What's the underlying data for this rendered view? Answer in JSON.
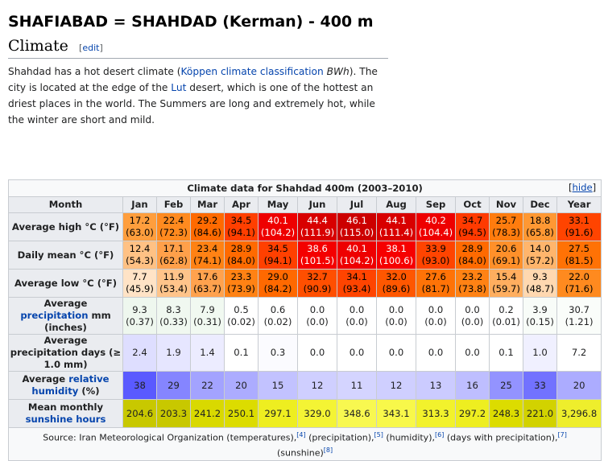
{
  "page_title": "SHAFIABAD = SHAHDAD (Kerman) - 400 m",
  "section": {
    "title": "Climate",
    "edit": "edit"
  },
  "paragraph": {
    "t1": "Shahdad has a hot desert climate (",
    "link1": "Köppen climate classification",
    "t2": " ",
    "bwh": "BWh",
    "t3": "). The city is located at the edge of the ",
    "link2": "Lut",
    "t4": " desert, which is one of the hottest an driest places in the world. The Summers are long and extremely hot, while the winter are short and mild."
  },
  "table": {
    "caption": "Climate data for Shahdad 400m (2003–2010)",
    "hide": "hide",
    "month_label": "Month",
    "months": [
      "Jan",
      "Feb",
      "Mar",
      "Apr",
      "May",
      "Jun",
      "Jul",
      "Aug",
      "Sep",
      "Oct",
      "Nov",
      "Dec",
      "Year"
    ],
    "rows": {
      "high": {
        "label": "Average high °C (°F)",
        "c": [
          "17.2",
          "22.4",
          "29.2",
          "34.5",
          "40.1",
          "44.4",
          "46.1",
          "44.1",
          "40.2",
          "34.7",
          "25.7",
          "18.8",
          "33.1"
        ],
        "f": [
          "(63.0)",
          "(72.3)",
          "(84.6)",
          "(94.1)",
          "(104.2)",
          "(111.9)",
          "(115.0)",
          "(111.4)",
          "(104.4)",
          "(94.5)",
          "(78.3)",
          "(65.8)",
          "(91.6)"
        ],
        "bg": [
          "#ff9e3d",
          "#ff8a1f",
          "#ff6a00",
          "#ff3f00",
          "#ee0000",
          "#d80000",
          "#cc0000",
          "#d80000",
          "#ee0000",
          "#ff3a00",
          "#ff7c0e",
          "#ff9833",
          "#ff4400"
        ],
        "fg": [
          "#000",
          "#000",
          "#000",
          "#000",
          "#fff",
          "#fff",
          "#fff",
          "#fff",
          "#fff",
          "#000",
          "#000",
          "#000",
          "#000"
        ]
      },
      "mean": {
        "label": "Daily mean °C (°F)",
        "c": [
          "12.4",
          "17.1",
          "23.4",
          "28.9",
          "34.5",
          "38.6",
          "40.1",
          "38.1",
          "33.9",
          "28.9",
          "20.6",
          "14.0",
          "27.5"
        ],
        "f": [
          "(54.3)",
          "(62.8)",
          "(74.1)",
          "(84.0)",
          "(94.1)",
          "(101.5)",
          "(104.2)",
          "(100.6)",
          "(93.0)",
          "(84.0)",
          "(69.1)",
          "(57.2)",
          "(81.5)"
        ],
        "bg": [
          "#ffc184",
          "#ffa04a",
          "#ff8214",
          "#ff6a00",
          "#ff4000",
          "#f40000",
          "#ee0000",
          "#f60000",
          "#ff4400",
          "#ff6a00",
          "#ff902a",
          "#ffb56c",
          "#ff7205"
        ],
        "fg": [
          "#000",
          "#000",
          "#000",
          "#000",
          "#000",
          "#fff",
          "#fff",
          "#fff",
          "#000",
          "#000",
          "#000",
          "#000",
          "#000"
        ]
      },
      "low": {
        "label": "Average low °C (°F)",
        "c": [
          "7.7",
          "11.9",
          "17.6",
          "23.3",
          "29.0",
          "32.7",
          "34.1",
          "32.0",
          "27.6",
          "23.2",
          "15.4",
          "9.3",
          "22.0"
        ],
        "f": [
          "(45.9)",
          "(53.4)",
          "(63.7)",
          "(73.9)",
          "(84.2)",
          "(90.9)",
          "(93.4)",
          "(89.6)",
          "(81.7)",
          "(73.8)",
          "(59.7)",
          "(48.7)",
          "(71.6)"
        ],
        "bg": [
          "#ffe3c6",
          "#ffc48a",
          "#ffa24e",
          "#ff8214",
          "#ff6900",
          "#ff4f00",
          "#ff4400",
          "#ff5700",
          "#ff7307",
          "#ff8214",
          "#ffae5f",
          "#ffd8b0",
          "#ff8a1f"
        ],
        "fg": [
          "#000",
          "#000",
          "#000",
          "#000",
          "#000",
          "#000",
          "#000",
          "#000",
          "#000",
          "#000",
          "#000",
          "#000",
          "#000"
        ]
      },
      "precip": {
        "label_a": "Average ",
        "label_link": "precipitation",
        "label_b": " mm (inches)",
        "c": [
          "9.3",
          "8.3",
          "7.9",
          "0.5",
          "0.6",
          "0.0",
          "0.0",
          "0.0",
          "0.0",
          "0.0",
          "0.2",
          "3.9",
          "30.7"
        ],
        "f": [
          "(0.37)",
          "(0.33)",
          "(0.31)",
          "(0.02)",
          "(0.02)",
          "(0.0)",
          "(0.0)",
          "(0.0)",
          "(0.0)",
          "(0.0)",
          "(0.01)",
          "(0.15)",
          "(1.21)"
        ],
        "bg": [
          "#eef7ee",
          "#f0f8f0",
          "#f1f9f1",
          "#ffffff",
          "#ffffff",
          "#ffffff",
          "#ffffff",
          "#ffffff",
          "#ffffff",
          "#ffffff",
          "#ffffff",
          "#f8fcf8",
          "#fafdfa"
        ]
      },
      "pdays": {
        "label": "Average precipitation days (≥ 1.0 mm)",
        "v": [
          "2.4",
          "1.9",
          "1.4",
          "0.1",
          "0.3",
          "0.0",
          "0.0",
          "0.0",
          "0.0",
          "0.0",
          "0.1",
          "1.0",
          "7.2"
        ],
        "bg": [
          "#dedeff",
          "#e6e6ff",
          "#ececff",
          "#ffffff",
          "#fbfbff",
          "#ffffff",
          "#ffffff",
          "#ffffff",
          "#ffffff",
          "#ffffff",
          "#ffffff",
          "#f0f0ff",
          "#ffffff"
        ]
      },
      "humid": {
        "label_a": "Average ",
        "label_link": "relative humidity",
        "label_b": " (%)",
        "v": [
          "38",
          "29",
          "22",
          "20",
          "15",
          "12",
          "11",
          "12",
          "13",
          "16",
          "25",
          "33",
          "20"
        ],
        "bg": [
          "#5a5aff",
          "#8585ff",
          "#a3a3ff",
          "#acacff",
          "#c2c2ff",
          "#cfcfff",
          "#d4d4ff",
          "#cfcfff",
          "#cbcbff",
          "#bebeff",
          "#9393ff",
          "#7272ff",
          "#acacff"
        ]
      },
      "sun": {
        "label_a": "Mean monthly ",
        "label_link": "sunshine hours",
        "v": [
          "204.6",
          "203.3",
          "241.2",
          "250.1",
          "297.1",
          "329.0",
          "348.6",
          "343.1",
          "313.3",
          "297.2",
          "248.3",
          "221.0",
          "3,296.8"
        ],
        "bg": [
          "#c8c800",
          "#c8c800",
          "#d9d900",
          "#dcdc00",
          "#eeee20",
          "#f4f434",
          "#f8f850",
          "#f8f84a",
          "#f2f22c",
          "#eeee20",
          "#dcdc00",
          "#d2d200",
          "#eeee2c"
        ]
      }
    },
    "source": {
      "s1": "Source: Iran Meteorological Organization (temperatures),",
      "r4": "[4]",
      "s2": " (precipitation),",
      "r5": "[5]",
      "s3": " (humidity),",
      "r6": "[6]",
      "s4": " (days with precipitation),",
      "r7": "[7]",
      "s5": "(sunshine)",
      "r8": "[8]"
    }
  }
}
